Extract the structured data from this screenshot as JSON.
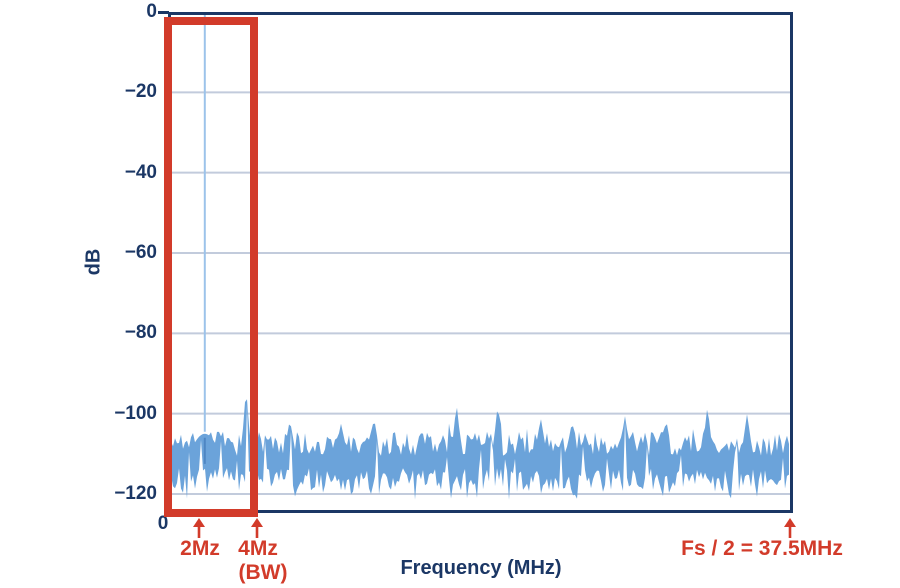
{
  "y_axis": {
    "label": "dB",
    "tick_labels": [
      "0",
      "−20",
      "−40",
      "−60",
      "−80",
      "−100",
      "−120"
    ]
  },
  "x_axis": {
    "label": "Frequency (MHz)",
    "origin_label": "0"
  },
  "annotations": {
    "tone_marker": {
      "label": "2Mz"
    },
    "bandwidth_marker": {
      "label": "4Mz",
      "sublabel": "(BW)"
    },
    "nyquist_marker": {
      "label": "Fs / 2 = 37.5MHz"
    }
  },
  "colors": {
    "navy": "#1B3765",
    "red": "#D23B2A",
    "grid": "#C2CBDC",
    "noise": "#6BA3DA",
    "tone-light": "#9CC3EA",
    "tone-dark": "#4E86C3"
  },
  "chart_data": {
    "type": "area",
    "title": "",
    "xlabel": "Frequency (MHz)",
    "ylabel": "dB",
    "xlim": [
      0,
      37.5
    ],
    "ylim": [
      -125,
      0
    ],
    "yticks": [
      0,
      -20,
      -40,
      -60,
      -80,
      -100,
      -120
    ],
    "xticks": [
      0
    ],
    "grid": "horizontal",
    "signal_tone": {
      "freq_mhz": 2.05,
      "peak_db": 0,
      "skirt_top_db": -105
    },
    "spurs": [
      [
        4.55,
        -93.5
      ],
      [
        7.2,
        -101.5
      ],
      [
        10.3,
        -102.5
      ],
      [
        12.3,
        -101
      ],
      [
        17.3,
        -97.5
      ],
      [
        19.8,
        -97.5
      ],
      [
        22.4,
        -101
      ],
      [
        24.3,
        -102
      ],
      [
        27.5,
        -100.5
      ],
      [
        30.0,
        -101.5
      ],
      [
        32.5,
        -98
      ],
      [
        34.9,
        -100
      ]
    ],
    "noise_floor": {
      "mean_db": -111,
      "top_db": -107.5,
      "bottom_db": -116.5,
      "jitter_db": 3,
      "needle_db": -121.5
    },
    "highlight_region": {
      "from_mhz": 0,
      "to_mhz": 4,
      "label": "BW"
    },
    "markers": [
      {
        "freq_mhz": 2,
        "label": "2Mz"
      },
      {
        "freq_mhz": 4,
        "label": "4Mz (BW)"
      },
      {
        "freq_mhz": 37.5,
        "label": "Fs / 2 = 37.5MHz"
      }
    ]
  }
}
